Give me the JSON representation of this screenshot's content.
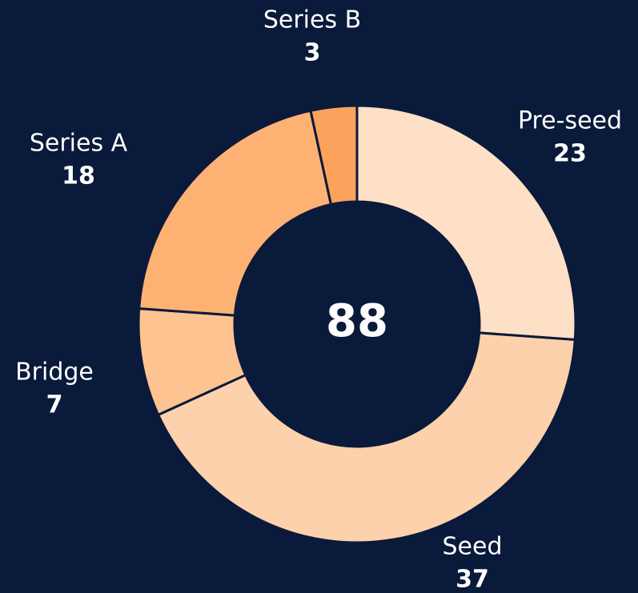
{
  "chart_data": {
    "type": "donut",
    "categories": [
      "Pre-seed",
      "Seed",
      "Bridge",
      "Series A",
      "Series B"
    ],
    "values": [
      23,
      37,
      7,
      18,
      3
    ],
    "colors": [
      "#fde0c5",
      "#fdd1ab",
      "#fdc391",
      "#fdb274",
      "#fba35c"
    ],
    "total": 88
  }
}
